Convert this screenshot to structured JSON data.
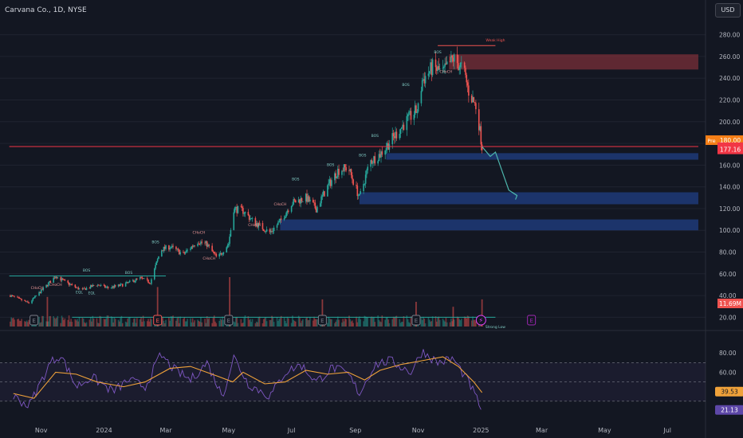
{
  "header": {
    "symbol": "Carvana Co., 1D, NYSE",
    "currency": "USD"
  },
  "colors": {
    "background": "#131722",
    "up": "#26a69a",
    "down": "#ef5350",
    "zone": "#1e3a78",
    "supply": "#7a2f38",
    "rsi": "#7e57c2",
    "rsi_ma": "#f0a23a",
    "price_line": "#f23645",
    "pre_label": "#f57f17"
  },
  "chart_data": {
    "type": "candlestick",
    "price_axis": {
      "ticks": [
        "280.00",
        "260.00",
        "240.00",
        "220.00",
        "200.00",
        "180.00",
        "160.00",
        "140.00",
        "120.00",
        "100.00",
        "80.00",
        "60.00",
        "40.00",
        "20.00"
      ],
      "min": 10,
      "max": 290
    },
    "time_axis": {
      "labels": [
        "Nov",
        "2024",
        "Mar",
        "May",
        "Jul",
        "Sep",
        "Nov",
        "2025",
        "Mar",
        "May",
        "Jul"
      ]
    },
    "price_path": [
      {
        "t": "2023-10-02",
        "p": 40
      },
      {
        "t": "2023-10-20",
        "p": 33
      },
      {
        "t": "2023-11-05",
        "p": 48
      },
      {
        "t": "2023-11-15",
        "p": 58
      },
      {
        "t": "2023-11-25",
        "p": 52
      },
      {
        "t": "2023-12-10",
        "p": 45
      },
      {
        "t": "2023-12-25",
        "p": 50
      },
      {
        "t": "2024-01-05",
        "p": 47
      },
      {
        "t": "2024-01-20",
        "p": 50
      },
      {
        "t": "2024-02-05",
        "p": 56
      },
      {
        "t": "2024-02-15",
        "p": 52
      },
      {
        "t": "2024-02-25",
        "p": 82
      },
      {
        "t": "2024-03-05",
        "p": 85
      },
      {
        "t": "2024-03-18",
        "p": 78
      },
      {
        "t": "2024-04-01",
        "p": 90
      },
      {
        "t": "2024-04-10",
        "p": 87
      },
      {
        "t": "2024-04-20",
        "p": 74
      },
      {
        "t": "2024-05-01",
        "p": 88
      },
      {
        "t": "2024-05-06",
        "p": 120
      },
      {
        "t": "2024-05-15",
        "p": 118
      },
      {
        "t": "2024-05-25",
        "p": 108
      },
      {
        "t": "2024-06-10",
        "p": 98
      },
      {
        "t": "2024-06-20",
        "p": 108
      },
      {
        "t": "2024-07-01",
        "p": 125
      },
      {
        "t": "2024-07-15",
        "p": 130
      },
      {
        "t": "2024-07-25",
        "p": 120
      },
      {
        "t": "2024-08-05",
        "p": 140
      },
      {
        "t": "2024-08-15",
        "p": 155
      },
      {
        "t": "2024-08-25",
        "p": 158
      },
      {
        "t": "2024-09-05",
        "p": 130
      },
      {
        "t": "2024-09-15",
        "p": 163
      },
      {
        "t": "2024-09-25",
        "p": 170
      },
      {
        "t": "2024-10-05",
        "p": 182
      },
      {
        "t": "2024-10-20",
        "p": 200
      },
      {
        "t": "2024-11-01",
        "p": 212
      },
      {
        "t": "2024-11-05",
        "p": 238
      },
      {
        "t": "2024-11-15",
        "p": 250
      },
      {
        "t": "2024-11-25",
        "p": 245
      },
      {
        "t": "2024-12-05",
        "p": 258
      },
      {
        "t": "2024-12-15",
        "p": 248
      },
      {
        "t": "2024-12-20",
        "p": 228
      },
      {
        "t": "2024-12-28",
        "p": 212
      },
      {
        "t": "2025-01-02",
        "p": 177
      }
    ],
    "projection": [
      {
        "t": "2025-01-02",
        "p": 177
      },
      {
        "t": "2025-01-10",
        "p": 168
      },
      {
        "t": "2025-01-15",
        "p": 172
      },
      {
        "t": "2025-01-28",
        "p": 137
      },
      {
        "t": "2025-02-05",
        "p": 132
      }
    ],
    "rsi": {
      "ticks": [
        "80.00",
        "60.00",
        "40.00",
        "20.00"
      ],
      "overbought": 70,
      "oversold": 30,
      "value": "21.13",
      "ma_value": "39.53",
      "series": [
        {
          "t": "2023-10-05",
          "v": 35
        },
        {
          "t": "2023-10-20",
          "v": 25
        },
        {
          "t": "2023-11-10",
          "v": 70
        },
        {
          "t": "2023-11-20",
          "v": 78
        },
        {
          "t": "2023-12-05",
          "v": 45
        },
        {
          "t": "2023-12-20",
          "v": 55
        },
        {
          "t": "2024-01-10",
          "v": 40
        },
        {
          "t": "2024-01-25",
          "v": 52
        },
        {
          "t": "2024-02-10",
          "v": 45
        },
        {
          "t": "2024-02-25",
          "v": 78
        },
        {
          "t": "2024-03-10",
          "v": 62
        },
        {
          "t": "2024-03-25",
          "v": 52
        },
        {
          "t": "2024-04-10",
          "v": 70
        },
        {
          "t": "2024-04-25",
          "v": 35
        },
        {
          "t": "2024-05-06",
          "v": 76
        },
        {
          "t": "2024-05-20",
          "v": 48
        },
        {
          "t": "2024-06-10",
          "v": 35
        },
        {
          "t": "2024-06-25",
          "v": 60
        },
        {
          "t": "2024-07-10",
          "v": 68
        },
        {
          "t": "2024-07-25",
          "v": 50
        },
        {
          "t": "2024-08-10",
          "v": 65
        },
        {
          "t": "2024-08-25",
          "v": 58
        },
        {
          "t": "2024-09-05",
          "v": 38
        },
        {
          "t": "2024-09-20",
          "v": 68
        },
        {
          "t": "2024-10-05",
          "v": 72
        },
        {
          "t": "2024-10-25",
          "v": 60
        },
        {
          "t": "2024-11-05",
          "v": 82
        },
        {
          "t": "2024-11-20",
          "v": 70
        },
        {
          "t": "2024-12-05",
          "v": 74
        },
        {
          "t": "2024-12-20",
          "v": 50
        },
        {
          "t": "2025-01-02",
          "v": 21
        }
      ],
      "ma_series": [
        {
          "t": "2023-10-05",
          "v": 38
        },
        {
          "t": "2023-10-25",
          "v": 33
        },
        {
          "t": "2023-11-15",
          "v": 60
        },
        {
          "t": "2023-12-05",
          "v": 58
        },
        {
          "t": "2023-12-25",
          "v": 50
        },
        {
          "t": "2024-01-20",
          "v": 45
        },
        {
          "t": "2024-02-10",
          "v": 50
        },
        {
          "t": "2024-03-05",
          "v": 64
        },
        {
          "t": "2024-03-25",
          "v": 66
        },
        {
          "t": "2024-04-20",
          "v": 56
        },
        {
          "t": "2024-05-05",
          "v": 50
        },
        {
          "t": "2024-05-15",
          "v": 60
        },
        {
          "t": "2024-06-05",
          "v": 48
        },
        {
          "t": "2024-06-25",
          "v": 50
        },
        {
          "t": "2024-07-15",
          "v": 62
        },
        {
          "t": "2024-08-05",
          "v": 58
        },
        {
          "t": "2024-08-25",
          "v": 60
        },
        {
          "t": "2024-09-10",
          "v": 52
        },
        {
          "t": "2024-09-25",
          "v": 62
        },
        {
          "t": "2024-10-15",
          "v": 68
        },
        {
          "t": "2024-11-05",
          "v": 72
        },
        {
          "t": "2024-11-25",
          "v": 76
        },
        {
          "t": "2024-12-10",
          "v": 66
        },
        {
          "t": "2024-12-25",
          "v": 50
        },
        {
          "t": "2025-01-02",
          "v": 39
        }
      ]
    },
    "zones": [
      {
        "kind": "demand",
        "from": "2024-10-01",
        "to": "2025-07-31",
        "low": 165,
        "high": 171
      },
      {
        "kind": "demand",
        "from": "2024-09-05",
        "to": "2025-07-31",
        "low": 124,
        "high": 135
      },
      {
        "kind": "demand",
        "from": "2024-06-20",
        "to": "2025-07-31",
        "low": 100,
        "high": 110
      },
      {
        "kind": "supply",
        "from": "2024-12-01",
        "to": "2025-07-31",
        "low": 248,
        "high": 262
      }
    ],
    "levels": [
      {
        "from": "2023-10-01",
        "to": "2025-07-31",
        "price": 177.16
      },
      {
        "from": "2023-10-01",
        "to": "2024-03-01",
        "price": 58
      }
    ],
    "price_labels": [
      {
        "text": "Pre",
        "value": "180.00",
        "price": 183
      },
      {
        "text": "",
        "value": "177.16",
        "price": 176.5
      },
      {
        "text": "",
        "value": "177.16",
        "price": 174.5
      }
    ],
    "annotations": [
      {
        "text": "BOS",
        "t": "2024-02-20",
        "p": 88
      },
      {
        "text": "CHoCH",
        "t": "2024-04-02",
        "p": 97
      },
      {
        "text": "CHoCH",
        "t": "2024-04-12",
        "p": 73
      },
      {
        "text": "BOS",
        "t": "2023-12-15",
        "p": 62
      },
      {
        "text": "CHoCH",
        "t": "2023-11-15",
        "p": 49
      },
      {
        "text": "CHoCH",
        "t": "2023-10-28",
        "p": 46
      },
      {
        "text": "EQL",
        "t": "2023-12-08",
        "p": 42
      },
      {
        "text": "EQL",
        "t": "2023-12-20",
        "p": 41
      },
      {
        "text": "BOS",
        "t": "2024-01-25",
        "p": 60
      },
      {
        "text": "CHoCH",
        "t": "2024-05-26",
        "p": 104
      },
      {
        "text": "CHoCH",
        "t": "2024-06-20",
        "p": 123
      },
      {
        "text": "BOS",
        "t": "2024-07-05",
        "p": 146
      },
      {
        "text": "BOS",
        "t": "2024-08-08",
        "p": 159
      },
      {
        "text": "BOS",
        "t": "2024-09-08",
        "p": 168
      },
      {
        "text": "BOS",
        "t": "2024-09-20",
        "p": 186
      },
      {
        "text": "BOS",
        "t": "2024-10-20",
        "p": 233
      },
      {
        "text": "BOS",
        "t": "2024-11-20",
        "p": 263
      },
      {
        "text": "CHoCH",
        "t": "2024-11-28",
        "p": 245
      },
      {
        "text": "Weak High",
        "t": "2025-01-15",
        "p": 274
      },
      {
        "text": "Strong Low",
        "t": "2025-01-15",
        "p": 10
      }
    ],
    "earnings_markers": [
      {
        "t": "2023-10-25",
        "kind": "earnings"
      },
      {
        "t": "2024-02-22",
        "kind": "earnings-red"
      },
      {
        "t": "2024-05-01",
        "kind": "earnings"
      },
      {
        "t": "2024-07-31",
        "kind": "earnings"
      },
      {
        "t": "2024-10-30",
        "kind": "earnings"
      },
      {
        "t": "2025-01-01",
        "kind": "flash"
      },
      {
        "t": "2025-02-19",
        "kind": "earnings-purple"
      }
    ],
    "price_badge": "11.69M",
    "volume_spikes": [
      {
        "t": "2023-11-07",
        "v": 0.6
      },
      {
        "t": "2024-02-22",
        "v": 0.8
      },
      {
        "t": "2024-05-02",
        "v": 1.0
      },
      {
        "t": "2024-07-31",
        "v": 0.55
      },
      {
        "t": "2024-10-30",
        "v": 0.5
      },
      {
        "t": "2024-12-05",
        "v": 0.4
      },
      {
        "t": "2025-01-02",
        "v": 0.55
      }
    ]
  }
}
